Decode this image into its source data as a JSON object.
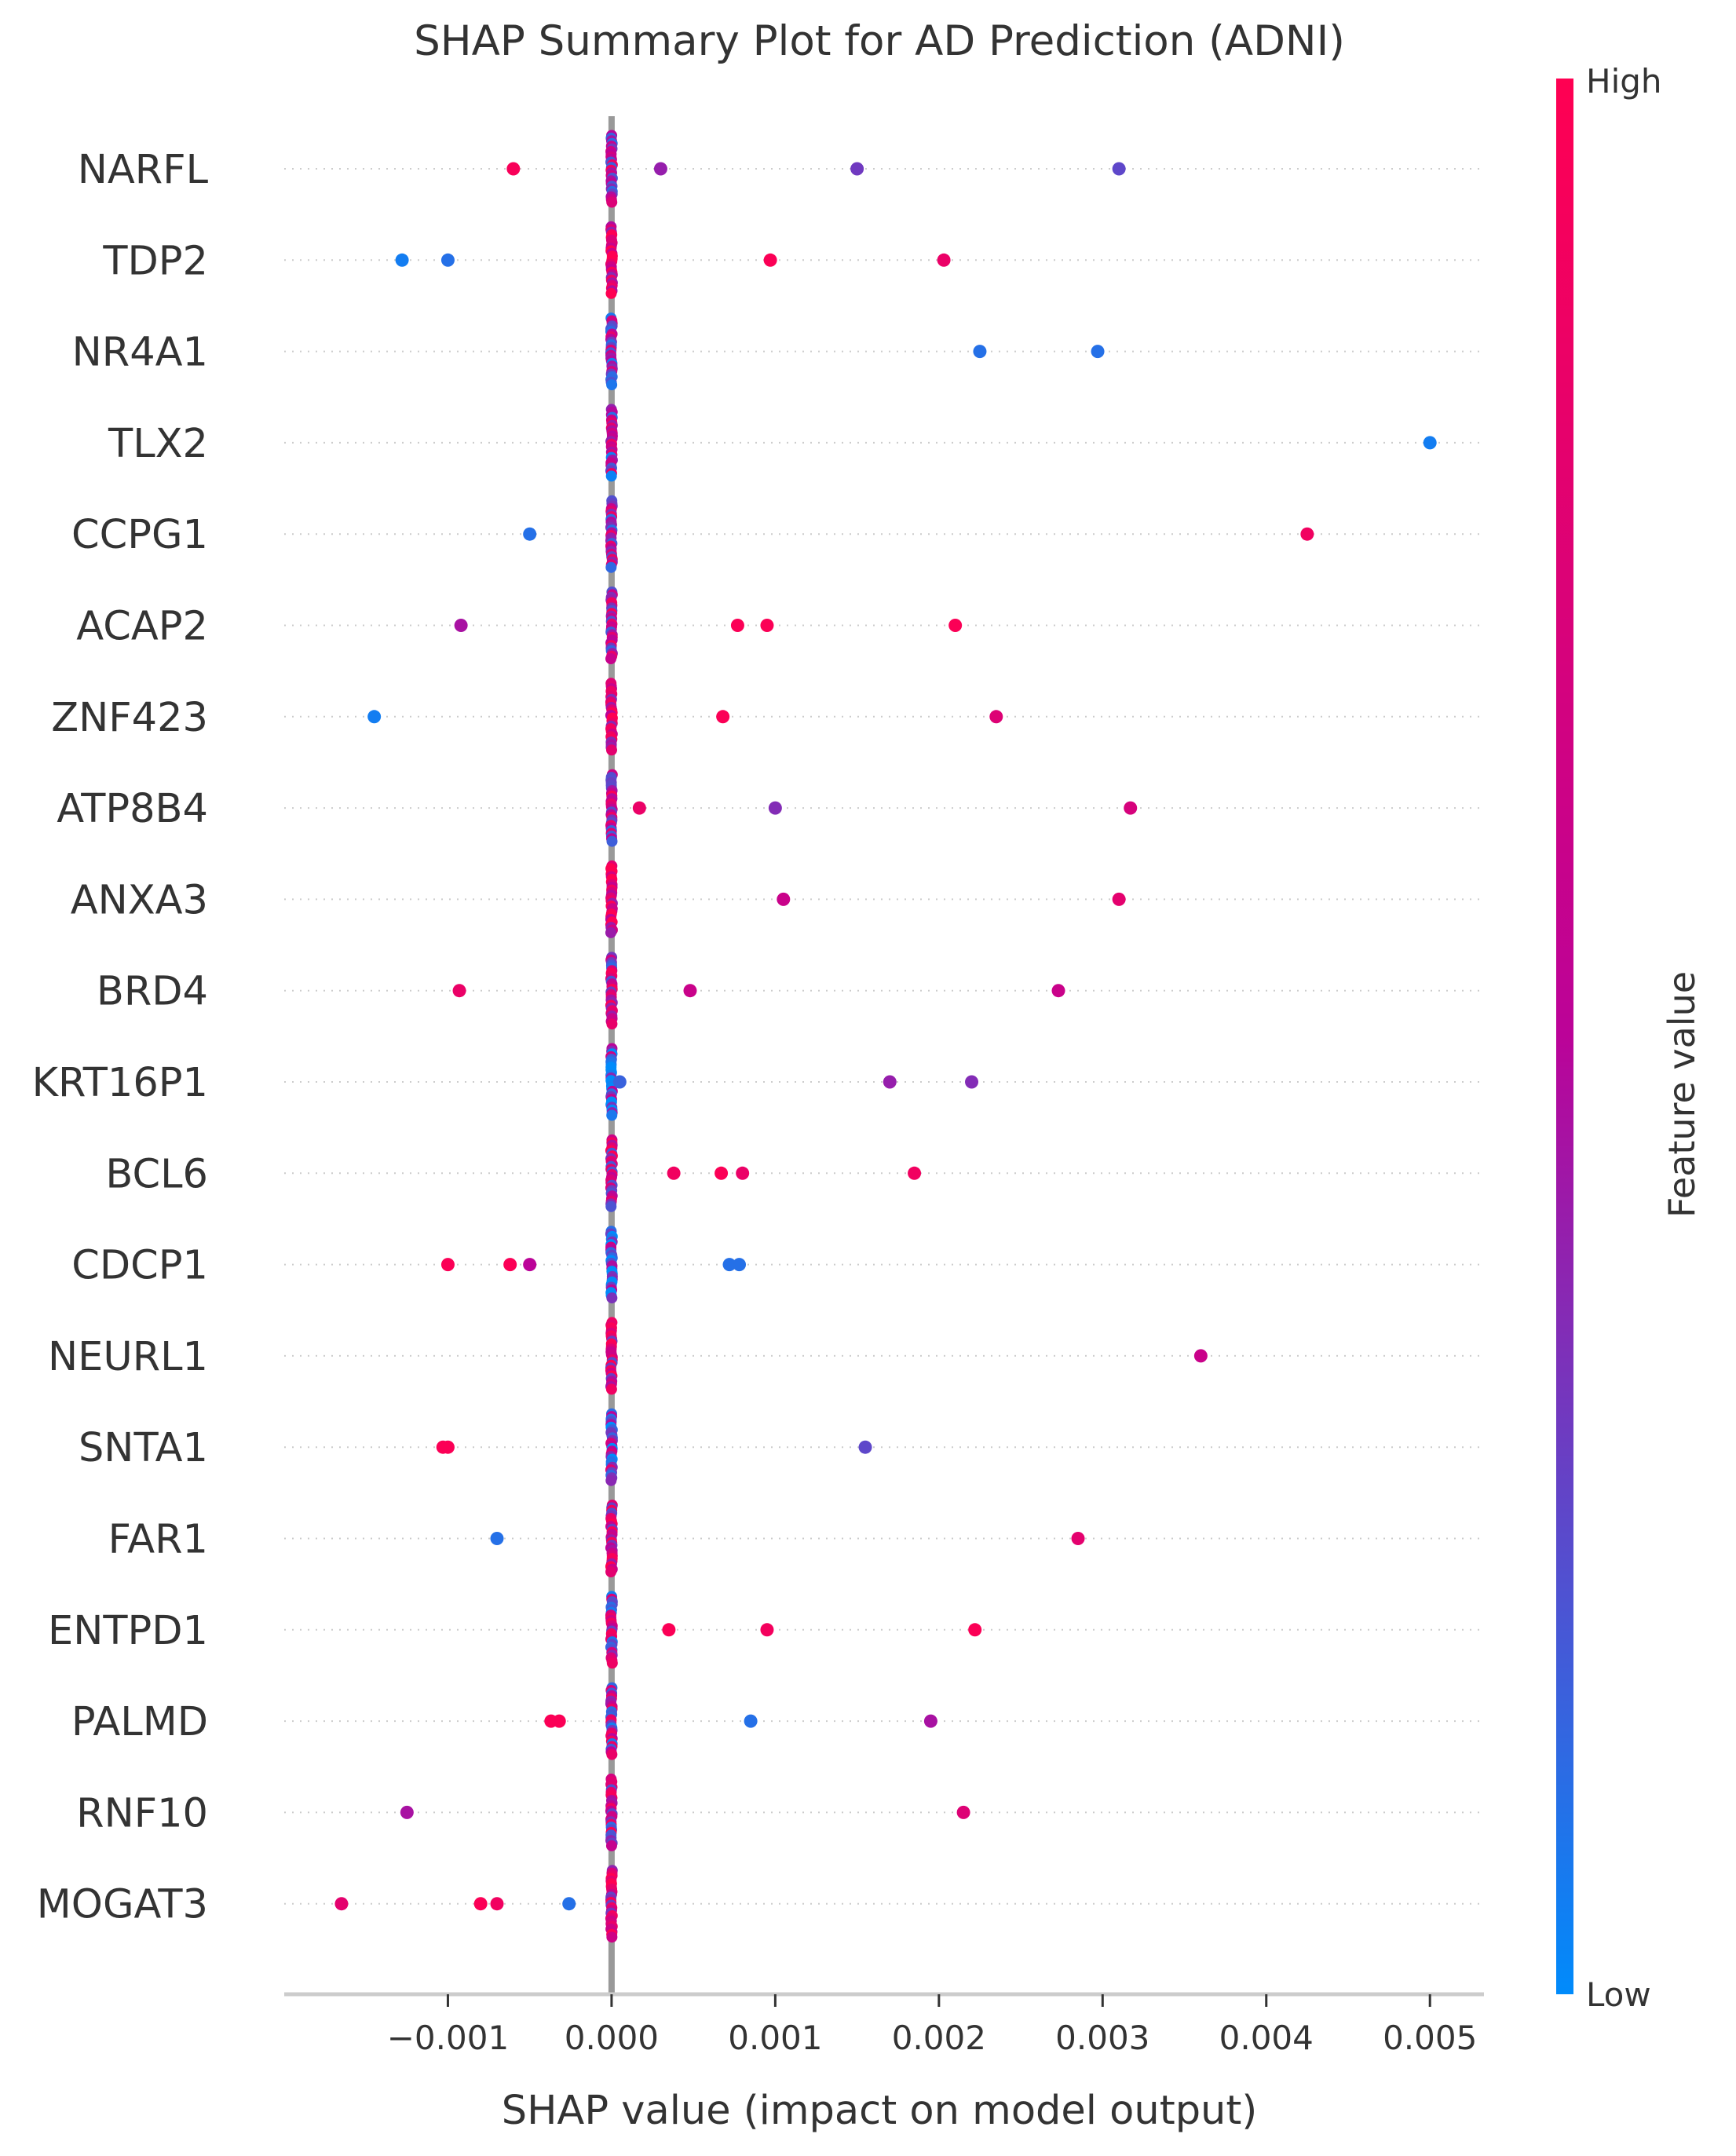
{
  "chart_data": {
    "type": "scatter",
    "title": "SHAP Summary Plot for AD Prediction (ADNI)",
    "xlabel": "SHAP value (impact on model output)",
    "xlim": [
      -0.002,
      0.00533
    ],
    "xticks": [
      -0.001,
      0.0,
      0.001,
      0.002,
      0.003,
      0.004,
      0.005
    ],
    "xtick_labels": [
      "−0.001",
      "0.000",
      "0.001",
      "0.002",
      "0.003",
      "0.004",
      "0.005"
    ],
    "colorbar": {
      "label": "Feature value",
      "high_label": "High",
      "low_label": "Low",
      "low_color": "#008bfb",
      "mid_color": "#bb0398",
      "high_color": "#ff0052"
    },
    "grid": "dotted horizontal guide per feature",
    "zero_line_color": "#999999",
    "features": [
      {
        "name": "NARFL",
        "points": [
          {
            "x": -0.0006,
            "v": 0.95
          },
          {
            "x": 0.0003,
            "v": 0.4
          },
          {
            "x": 0.0015,
            "v": 0.3
          },
          {
            "x": 0.0031,
            "v": 0.25
          }
        ],
        "cluster_bias": 0.5
      },
      {
        "name": "TDP2",
        "points": [
          {
            "x": -0.00128,
            "v": 0.05
          },
          {
            "x": -0.001,
            "v": 0.1
          },
          {
            "x": 0.00097,
            "v": 0.97
          },
          {
            "x": 0.00203,
            "v": 0.85
          }
        ],
        "cluster_bias": 0.8
      },
      {
        "name": "NR4A1",
        "points": [
          {
            "x": 0.00225,
            "v": 0.1
          },
          {
            "x": 0.00297,
            "v": 0.1
          }
        ],
        "cluster_bias": 0.5
      },
      {
        "name": "TLX2",
        "points": [
          {
            "x": 0.005,
            "v": 0.05
          }
        ],
        "cluster_bias": 0.45
      },
      {
        "name": "CCPG1",
        "points": [
          {
            "x": -0.0005,
            "v": 0.1
          },
          {
            "x": 0.00425,
            "v": 0.9
          }
        ],
        "cluster_bias": 0.5
      },
      {
        "name": "ACAP2",
        "points": [
          {
            "x": -0.00092,
            "v": 0.45
          },
          {
            "x": 0.00077,
            "v": 0.97
          },
          {
            "x": 0.00095,
            "v": 0.97
          },
          {
            "x": 0.0021,
            "v": 0.97
          }
        ],
        "cluster_bias": 0.55
      },
      {
        "name": "ZNF423",
        "points": [
          {
            "x": -0.00145,
            "v": 0.05
          },
          {
            "x": 0.00068,
            "v": 0.97
          },
          {
            "x": 0.00235,
            "v": 0.75
          }
        ],
        "cluster_bias": 0.8
      },
      {
        "name": "ATP8B4",
        "points": [
          {
            "x": 0.00017,
            "v": 0.85
          },
          {
            "x": 0.001,
            "v": 0.35
          },
          {
            "x": 0.00317,
            "v": 0.7
          }
        ],
        "cluster_bias": 0.6
      },
      {
        "name": "ANXA3",
        "points": [
          {
            "x": 0.00105,
            "v": 0.6
          },
          {
            "x": 0.0031,
            "v": 0.8
          }
        ],
        "cluster_bias": 0.85
      },
      {
        "name": "BRD4",
        "points": [
          {
            "x": -0.00093,
            "v": 0.85
          },
          {
            "x": 0.00048,
            "v": 0.6
          },
          {
            "x": 0.00273,
            "v": 0.6
          }
        ],
        "cluster_bias": 0.55
      },
      {
        "name": "KRT16P1",
        "points": [
          {
            "x": 5e-05,
            "v": 0.15
          },
          {
            "x": 0.0017,
            "v": 0.4
          },
          {
            "x": 0.0022,
            "v": 0.35
          }
        ],
        "cluster_bias": 0.2
      },
      {
        "name": "BCL6",
        "points": [
          {
            "x": 0.00038,
            "v": 0.9
          },
          {
            "x": 0.00067,
            "v": 0.97
          },
          {
            "x": 0.0008,
            "v": 0.85
          },
          {
            "x": 0.00185,
            "v": 0.9
          }
        ],
        "cluster_bias": 0.55
      },
      {
        "name": "CDCP1",
        "points": [
          {
            "x": -0.001,
            "v": 0.97
          },
          {
            "x": -0.00062,
            "v": 0.97
          },
          {
            "x": -0.0005,
            "v": 0.5
          },
          {
            "x": 0.00072,
            "v": 0.1
          },
          {
            "x": 0.00078,
            "v": 0.1
          }
        ],
        "cluster_bias": 0.2
      },
      {
        "name": "NEURL1",
        "points": [
          {
            "x": 0.0036,
            "v": 0.6
          }
        ],
        "cluster_bias": 0.65
      },
      {
        "name": "SNTA1",
        "points": [
          {
            "x": -0.00103,
            "v": 0.97
          },
          {
            "x": -0.001,
            "v": 0.97
          },
          {
            "x": 0.00155,
            "v": 0.25
          }
        ],
        "cluster_bias": 0.35
      },
      {
        "name": "FAR1",
        "points": [
          {
            "x": -0.0007,
            "v": 0.1
          },
          {
            "x": 0.00285,
            "v": 0.8
          }
        ],
        "cluster_bias": 0.65
      },
      {
        "name": "ENTPD1",
        "points": [
          {
            "x": 0.00035,
            "v": 0.97
          },
          {
            "x": 0.00095,
            "v": 0.92
          },
          {
            "x": 0.00222,
            "v": 0.97
          }
        ],
        "cluster_bias": 0.5
      },
      {
        "name": "PALMD",
        "points": [
          {
            "x": -0.00037,
            "v": 0.97
          },
          {
            "x": -0.00032,
            "v": 0.97
          },
          {
            "x": 0.00085,
            "v": 0.1
          },
          {
            "x": 0.00195,
            "v": 0.45
          }
        ],
        "cluster_bias": 0.5
      },
      {
        "name": "RNF10",
        "points": [
          {
            "x": -0.00125,
            "v": 0.45
          },
          {
            "x": 0.00215,
            "v": 0.75
          }
        ],
        "cluster_bias": 0.55
      },
      {
        "name": "MOGAT3",
        "points": [
          {
            "x": -0.00165,
            "v": 0.8
          },
          {
            "x": -0.0008,
            "v": 0.97
          },
          {
            "x": -0.0007,
            "v": 0.9
          },
          {
            "x": -0.00026,
            "v": 0.1
          }
        ],
        "cluster_bias": 0.65
      }
    ]
  }
}
